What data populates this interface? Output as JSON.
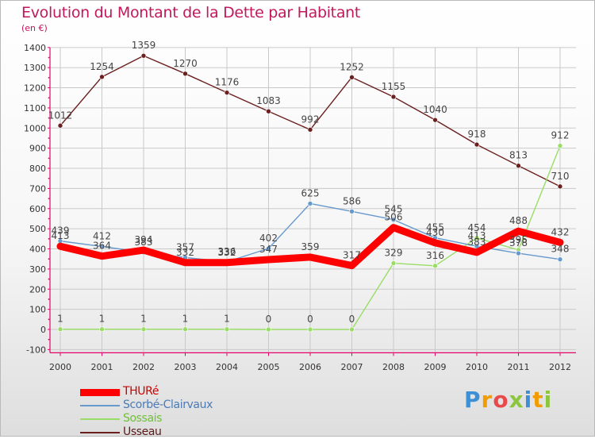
{
  "title": "Evolution du Montant de la Dette par Habitant",
  "unit": "(en €)",
  "logo_text": "Proxiti",
  "colors": {
    "title": "#c2185b",
    "axis": "#e5006a",
    "grid": "#c9c9c9"
  },
  "chart_data": {
    "type": "line",
    "title": "Evolution du Montant de la Dette par Habitant",
    "subtitle": "(en €)",
    "xlabel": "",
    "ylabel": "",
    "x": [
      "2000",
      "2001",
      "2002",
      "2003",
      "2004",
      "2005",
      "2006",
      "2007",
      "2008",
      "2009",
      "2010",
      "2011",
      "2012"
    ],
    "ylim": [
      -100,
      1400
    ],
    "yticks": [
      -100,
      0,
      100,
      200,
      300,
      400,
      500,
      600,
      700,
      800,
      900,
      1000,
      1100,
      1200,
      1300,
      1400
    ],
    "grid": true,
    "legend_position": "bottom-left",
    "series": [
      {
        "name": "THURé",
        "color": "#ff0000",
        "width": 9,
        "values": [
          413,
          364,
          394,
          332,
          332,
          347,
          359,
          317,
          506,
          430,
          383,
          488,
          432
        ]
      },
      {
        "name": "Scorbé-Clairvaux",
        "color": "#6699cc",
        "width": 1.4,
        "values": [
          439,
          412,
          383,
          357,
          336,
          402,
          625,
          586,
          545,
          455,
          413,
          378,
          348
        ]
      },
      {
        "name": "Sossais",
        "color": "#99dd66",
        "width": 1.4,
        "values": [
          1,
          1,
          1,
          1,
          1,
          0,
          0,
          0,
          329,
          316,
          454,
          395,
          912
        ]
      },
      {
        "name": "Usseau",
        "color": "#6b1f1f",
        "width": 1.4,
        "values": [
          1012,
          1254,
          1359,
          1270,
          1176,
          1083,
          992,
          1252,
          1155,
          1040,
          918,
          813,
          710
        ]
      }
    ]
  }
}
